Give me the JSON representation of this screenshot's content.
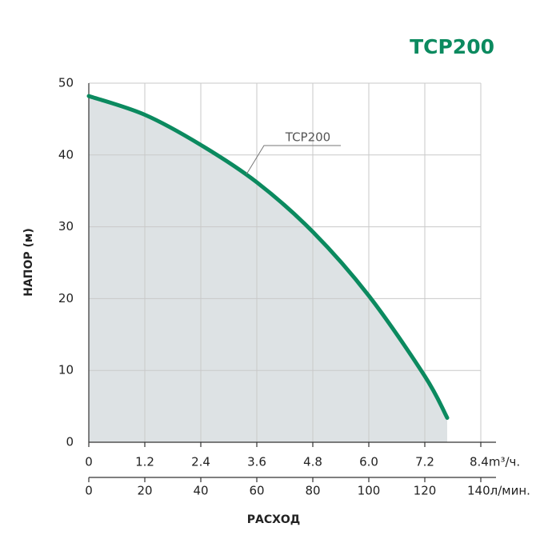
{
  "chart_data": {
    "type": "area",
    "title": "TCP200",
    "y_label": "НАПОР (м)",
    "x_label": "РАСХОД",
    "x": [
      0,
      1.2,
      2.4,
      3.6,
      4.8,
      6.0,
      7.2,
      7.68
    ],
    "series": [
      {
        "name": "TCP200",
        "color": "#0b8a5f",
        "fill": "#dde2e4",
        "values": [
          48.2,
          45.6,
          41.4,
          36.2,
          29.3,
          20.4,
          9.2,
          3.4
        ]
      }
    ],
    "xlim": [
      0,
      8.4
    ],
    "xticks": [
      0,
      1.2,
      2.4,
      3.6,
      4.8,
      {
        "value": 6,
        "label": "6.0"
      },
      7.2,
      {
        "value": 8.4,
        "label": "8.4m³/ч."
      }
    ],
    "x2lim": [
      0,
      140
    ],
    "x2ticks": [
      0,
      20,
      40,
      60,
      80,
      100,
      120,
      {
        "value": 140,
        "label": "140л/мин."
      }
    ],
    "ylim": [
      0,
      50
    ],
    "yticks": [
      0,
      10,
      20,
      30,
      40,
      50
    ],
    "grid": true
  }
}
